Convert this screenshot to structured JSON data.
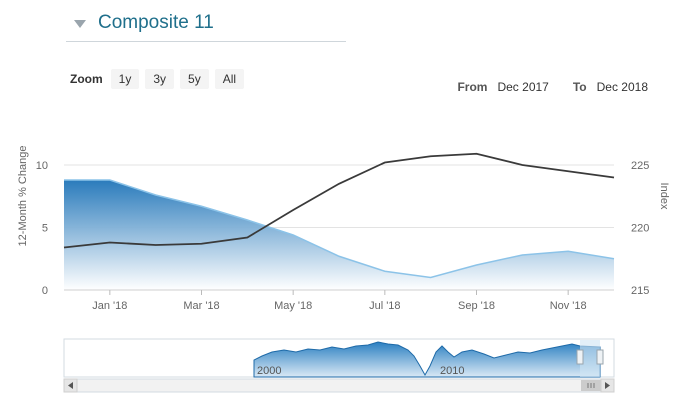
{
  "header": {
    "title": "Composite 11"
  },
  "zoom": {
    "label": "Zoom",
    "buttons": [
      "1y",
      "3y",
      "5y",
      "All"
    ]
  },
  "range": {
    "from_label": "From",
    "from_value": "Dec 2017",
    "to_label": "To",
    "to_value": "Dec 2018"
  },
  "navigator": {
    "labels": [
      "2000",
      "2010"
    ]
  },
  "colors": {
    "area_top": "#2179bd",
    "area_bottom": "#ffffff",
    "line": "#3a3a3a",
    "title": "#1f6f8b"
  },
  "chart_data": {
    "type": "line",
    "title": "",
    "x_tick_labels": [
      "Jan '18",
      "Mar '18",
      "May '18",
      "Jul '18",
      "Sep '18",
      "Nov '18"
    ],
    "left_axis": {
      "title": "12-Month % Change",
      "ticks": [
        "0",
        "5",
        "10"
      ],
      "range": [
        0,
        12
      ]
    },
    "right_axis": {
      "title": "Index",
      "ticks": [
        "215",
        "220",
        "225"
      ],
      "range": [
        215,
        227
      ]
    },
    "x": [
      "Dec 2017",
      "Jan 2018",
      "Feb 2018",
      "Mar 2018",
      "Apr 2018",
      "May 2018",
      "Jun 2018",
      "Jul 2018",
      "Aug 2018",
      "Sep 2018",
      "Oct 2018",
      "Nov 2018",
      "Dec 2018"
    ],
    "series": [
      {
        "type": "area",
        "axis": "left",
        "values": [
          8.8,
          8.8,
          7.6,
          6.7,
          5.6,
          4.4,
          2.7,
          1.5,
          1.0,
          2.0,
          2.8,
          3.1,
          2.5
        ]
      },
      {
        "type": "line",
        "axis": "right",
        "values": [
          218.4,
          218.8,
          218.6,
          218.7,
          219.2,
          221.4,
          223.5,
          225.2,
          225.7,
          225.9,
          225.0,
          224.5,
          224.0
        ]
      }
    ],
    "grid": true
  }
}
